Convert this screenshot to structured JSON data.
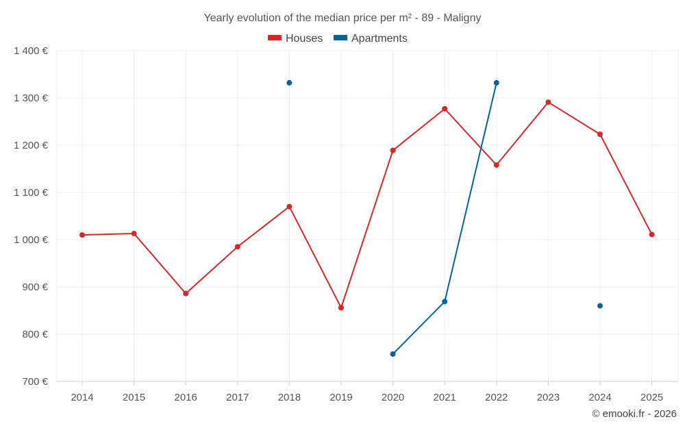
{
  "chart_data": {
    "type": "line",
    "title": "Yearly evolution of the median price per m² - 89 - Maligny",
    "categories": [
      "2014",
      "2015",
      "2016",
      "2017",
      "2018",
      "2019",
      "2020",
      "2021",
      "2022",
      "2023",
      "2024",
      "2025"
    ],
    "ylim": [
      700,
      1400
    ],
    "yticks": [
      700,
      800,
      900,
      1000,
      1100,
      1200,
      1300,
      1400
    ],
    "ytick_labels": [
      "700 €",
      "800 €",
      "900 €",
      "1 000 €",
      "1 100 €",
      "1 200 €",
      "1 300 €",
      "1 400 €"
    ],
    "grid": true,
    "legend_position": "top-center",
    "series": [
      {
        "name": "Houses",
        "color": "#d62728",
        "values": [
          1010,
          1013,
          886,
          985,
          1070,
          856,
          1189,
          1277,
          1158,
          1291,
          1223,
          1011
        ]
      },
      {
        "name": "Apartments",
        "color": "#03649a",
        "values": [
          null,
          null,
          null,
          null,
          1332,
          null,
          758,
          869,
          1332,
          null,
          860,
          null
        ]
      }
    ]
  },
  "credit": "© emooki.fr - 2026"
}
